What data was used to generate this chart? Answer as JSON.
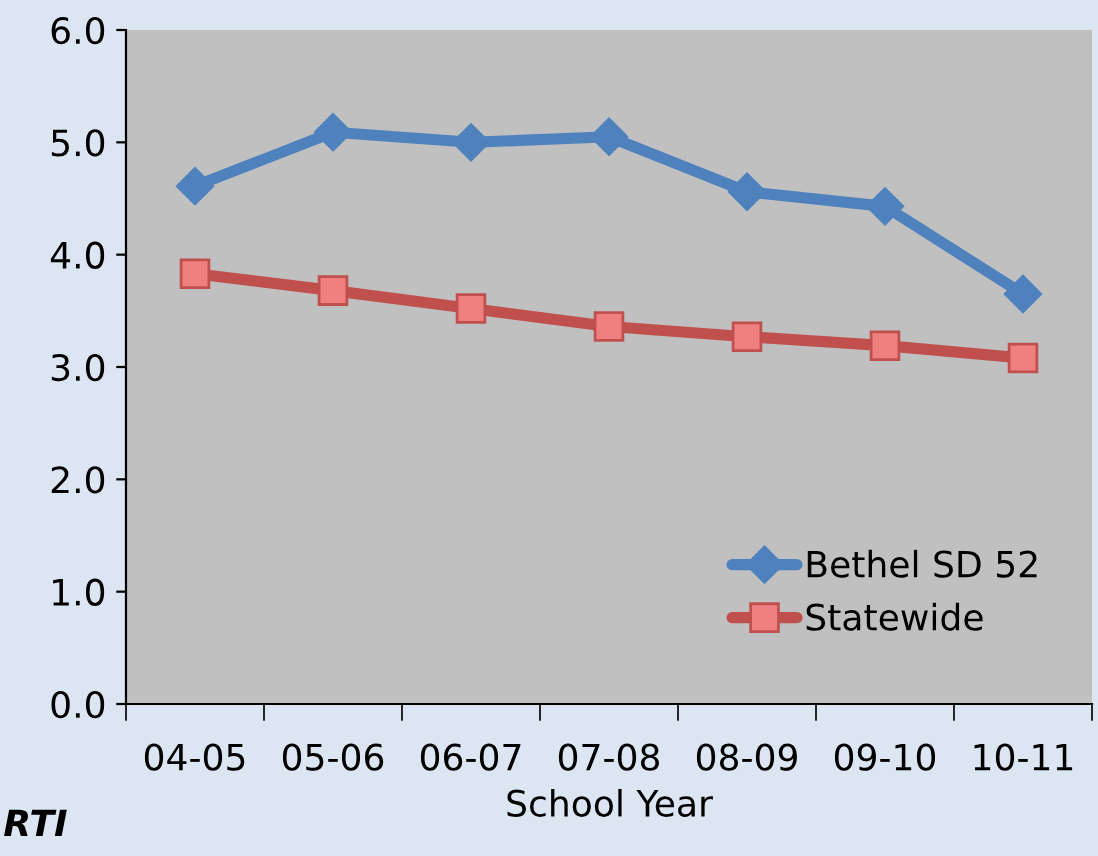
{
  "chart_data": {
    "type": "line",
    "xlabel": "School Year",
    "categories": [
      "04-05",
      "05-06",
      "06-07",
      "07-08",
      "08-09",
      "09-10",
      "10-11"
    ],
    "series": [
      {
        "name": "Bethel SD 52",
        "color": "#4f81bd",
        "marker": "diamond",
        "values": [
          4.61,
          5.09,
          5.0,
          5.05,
          4.56,
          4.43,
          3.65
        ]
      },
      {
        "name": "Statewide",
        "color": "#c0504d",
        "marker": "square",
        "values": [
          3.83,
          3.68,
          3.52,
          3.36,
          3.27,
          3.19,
          3.08
        ]
      }
    ],
    "ylim": [
      0,
      6
    ],
    "yticks": [
      {
        "value": 0,
        "label": "0.0"
      },
      {
        "value": 1,
        "label": "1.0"
      },
      {
        "value": 2,
        "label": "2.0"
      },
      {
        "value": 3,
        "label": "3.0"
      },
      {
        "value": 4,
        "label": "4.0"
      },
      {
        "value": 5,
        "label": "5.0"
      },
      {
        "value": 6,
        "label": "6.0"
      }
    ],
    "grid": false,
    "legend": "bottom right",
    "annotations": [
      "RTI"
    ]
  }
}
